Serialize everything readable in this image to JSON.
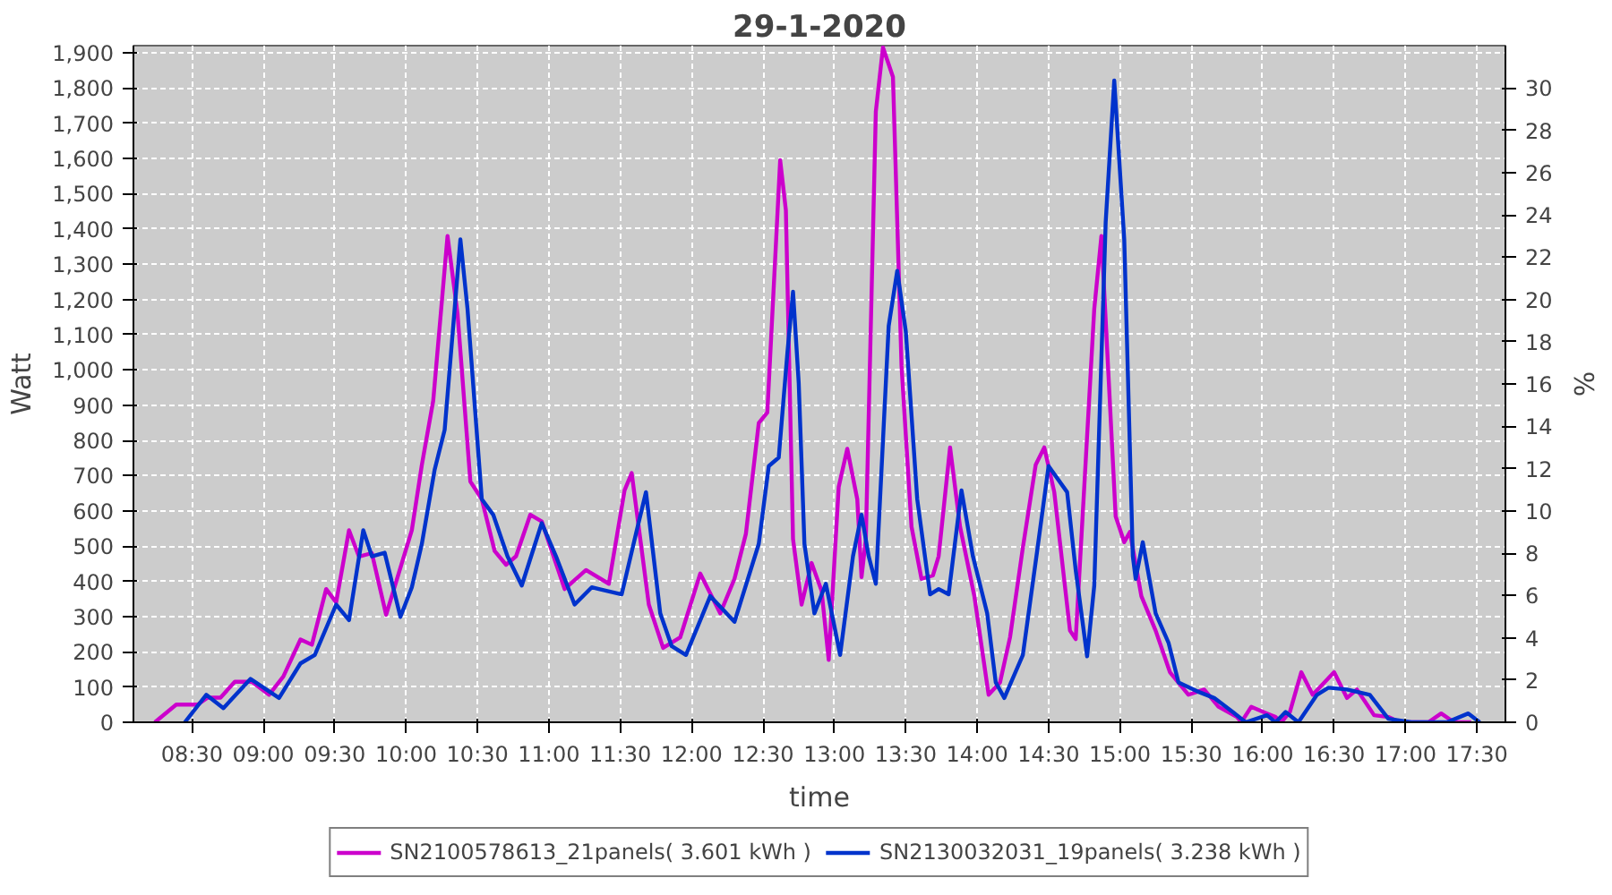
{
  "chart_data": {
    "type": "line",
    "title": "29-1-2020",
    "xlabel": "time",
    "ylabel": "Watt",
    "y2label": "%",
    "xlim": [
      8.09,
      17.7
    ],
    "ylim": [
      0,
      1920
    ],
    "y2lim": [
      0,
      32
    ],
    "xticks": [
      {
        "value": 8.5,
        "label": "08:30"
      },
      {
        "value": 9,
        "label": "09:00"
      },
      {
        "value": 9.5,
        "label": "09:30"
      },
      {
        "value": 10,
        "label": "10:00"
      },
      {
        "value": 10.5,
        "label": "10:30"
      },
      {
        "value": 11,
        "label": "11:00"
      },
      {
        "value": 11.5,
        "label": "11:30"
      },
      {
        "value": 12,
        "label": "12:00"
      },
      {
        "value": 12.5,
        "label": "12:30"
      },
      {
        "value": 13,
        "label": "13:00"
      },
      {
        "value": 13.5,
        "label": "13:30"
      },
      {
        "value": 14,
        "label": "14:00"
      },
      {
        "value": 14.5,
        "label": "14:30"
      },
      {
        "value": 15,
        "label": "15:00"
      },
      {
        "value": 15.5,
        "label": "15:30"
      },
      {
        "value": 16,
        "label": "16:00"
      },
      {
        "value": 16.5,
        "label": "16:30"
      },
      {
        "value": 17,
        "label": "17:00"
      },
      {
        "value": 17.5,
        "label": "17:30"
      }
    ],
    "yticks": [
      0,
      100,
      200,
      300,
      400,
      500,
      600,
      700,
      800,
      900,
      {
        "value": 1000,
        "label": "1,000"
      },
      {
        "value": 1100,
        "label": "1,100"
      },
      {
        "value": 1200,
        "label": "1,200"
      },
      {
        "value": 1300,
        "label": "1,300"
      },
      {
        "value": 1400,
        "label": "1,400"
      },
      {
        "value": 1500,
        "label": "1,500"
      },
      {
        "value": 1600,
        "label": "1,600"
      },
      {
        "value": 1700,
        "label": "1,700"
      },
      {
        "value": 1800,
        "label": "1,800"
      },
      {
        "value": 1900,
        "label": "1,900"
      }
    ],
    "y2ticks": [
      0,
      2,
      4,
      6,
      8,
      10,
      12,
      14,
      16,
      18,
      20,
      22,
      24,
      26,
      28,
      30
    ],
    "grid": true,
    "legend": "bottom",
    "marker": "none",
    "line_style": "solid",
    "series": [
      {
        "name": "SN2100578613_21panels( 3.601 kWh )",
        "color": "#cc00cc",
        "x": [
          8.24,
          8.39,
          8.54,
          8.61,
          8.7,
          8.8,
          8.92,
          9.04,
          9.14,
          9.26,
          9.34,
          9.44,
          9.51,
          9.6,
          9.67,
          9.76,
          9.86,
          10.04,
          10.11,
          10.19,
          10.29,
          10.36,
          10.45,
          10.53,
          10.62,
          10.7,
          10.77,
          10.87,
          10.95,
          11.11,
          11.26,
          11.42,
          11.53,
          11.58,
          11.7,
          11.8,
          11.92,
          12.06,
          12.2,
          12.3,
          12.38,
          12.47,
          12.53,
          12.59,
          12.62,
          12.66,
          12.71,
          12.77,
          12.84,
          12.91,
          12.96,
          13.03,
          13.09,
          13.16,
          13.19,
          13.22,
          13.29,
          13.34,
          13.41,
          13.47,
          13.54,
          13.61,
          13.69,
          13.73,
          13.81,
          13.88,
          13.98,
          14.08,
          14.16,
          14.23,
          14.32,
          14.41,
          14.47,
          14.54,
          14.65,
          14.69,
          14.82,
          14.87,
          14.97,
          15.03,
          15.07,
          15.15,
          15.25,
          15.35,
          15.48,
          15.59,
          15.69,
          15.82,
          15.85,
          15.92,
          16.03,
          16.09,
          16.13,
          16.19,
          16.27,
          16.35,
          16.5,
          16.59,
          16.66,
          16.78,
          16.88,
          16.96,
          17.16,
          17.25,
          17.34,
          17.46
        ],
        "values": [
          0,
          50,
          50,
          70,
          70,
          115,
          115,
          78,
          130,
          235,
          220,
          378,
          340,
          545,
          470,
          480,
          305,
          545,
          730,
          913,
          1380,
          1160,
          683,
          633,
          486,
          447,
          471,
          589,
          570,
          378,
          432,
          393,
          658,
          707,
          334,
          211,
          241,
          422,
          309,
          407,
          535,
          849,
          879,
          1355,
          1595,
          1453,
          520,
          334,
          452,
          373,
          177,
          668,
          776,
          633,
          412,
          520,
          1733,
          1915,
          1831,
          1011,
          555,
          407,
          417,
          471,
          780,
          555,
          358,
          78,
          113,
          241,
          496,
          731,
          780,
          653,
          260,
          236,
          1173,
          1380,
          584,
          511,
          540,
          358,
          260,
          142,
          78,
          93,
          44,
          15,
          0,
          44,
          25,
          15,
          0,
          29,
          142,
          78,
          142,
          69,
          93,
          20,
          15,
          0,
          0,
          25,
          0,
          0
        ]
      },
      {
        "name": "SN2130032031_19panels( 3.238 kWh )",
        "color": "#0033cc",
        "x": [
          8.45,
          8.6,
          8.72,
          8.91,
          9.11,
          9.26,
          9.36,
          9.51,
          9.6,
          9.7,
          9.76,
          9.85,
          9.96,
          10.04,
          10.11,
          10.2,
          10.27,
          10.38,
          10.43,
          10.53,
          10.61,
          10.71,
          10.81,
          10.95,
          11.05,
          11.18,
          11.3,
          11.35,
          11.51,
          11.61,
          11.68,
          11.78,
          11.86,
          11.96,
          12.13,
          12.3,
          12.47,
          12.54,
          12.61,
          12.67,
          12.71,
          12.75,
          12.79,
          12.86,
          12.94,
          13.04,
          13.13,
          13.19,
          13.24,
          13.29,
          13.38,
          13.44,
          13.5,
          13.58,
          13.67,
          13.73,
          13.8,
          13.89,
          13.97,
          14.07,
          14.13,
          14.19,
          14.32,
          14.42,
          14.5,
          14.63,
          14.69,
          14.77,
          14.82,
          14.9,
          14.96,
          15.03,
          15.09,
          15.11,
          15.16,
          15.25,
          15.34,
          15.41,
          15.54,
          15.66,
          15.79,
          15.88,
          16.03,
          16.09,
          16.16,
          16.25,
          16.38,
          16.46,
          16.59,
          16.75,
          16.88,
          17.04,
          17.29,
          17.44,
          17.52
        ],
        "values": [
          0,
          78,
          40,
          123,
          69,
          167,
          191,
          334,
          290,
          545,
          471,
          481,
          299,
          383,
          506,
          717,
          830,
          1370,
          1173,
          633,
          589,
          471,
          388,
          565,
          471,
          334,
          383,
          378,
          363,
          535,
          653,
          309,
          216,
          191,
          358,
          285,
          506,
          727,
          751,
          1046,
          1222,
          962,
          506,
          309,
          393,
          191,
          471,
          589,
          471,
          393,
          1124,
          1281,
          1109,
          633,
          363,
          378,
          363,
          658,
          471,
          309,
          113,
          69,
          191,
          486,
          727,
          653,
          432,
          187,
          388,
          1419,
          1821,
          1370,
          471,
          407,
          511,
          309,
          226,
          113,
          88,
          69,
          29,
          0,
          20,
          0,
          29,
          0,
          78,
          98,
          93,
          78,
          10,
          0,
          0,
          25,
          0
        ]
      }
    ]
  }
}
